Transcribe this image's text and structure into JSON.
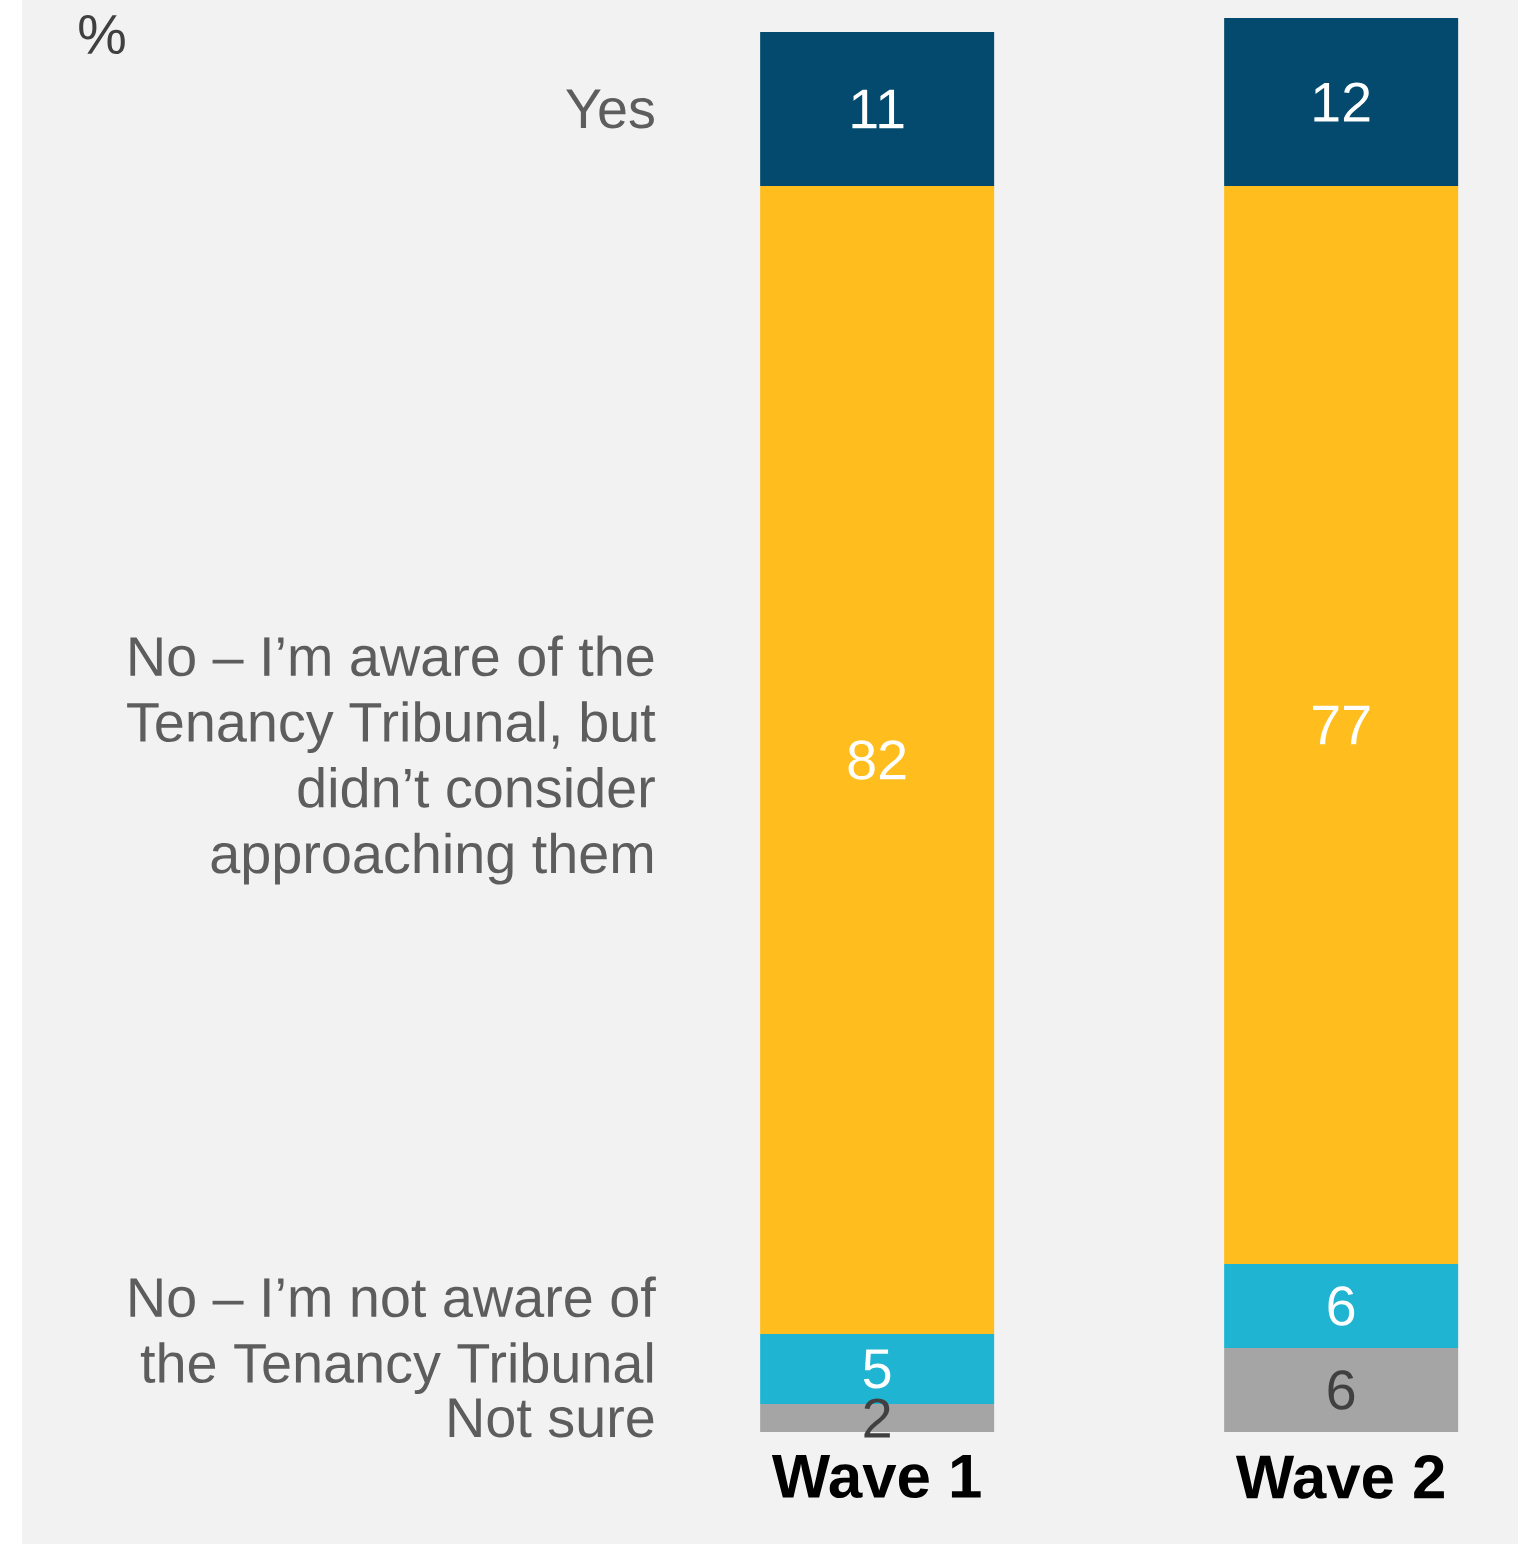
{
  "chart_data": {
    "type": "bar",
    "stacked": true,
    "annotations": [
      "%"
    ],
    "data_labels": true,
    "categories": [
      "Wave 1",
      "Wave 2"
    ],
    "series": [
      {
        "name": "Not sure",
        "color": "#a5a5a5",
        "values": [
          2,
          6
        ]
      },
      {
        "name": "No – I’m not aware of the Tenancy Tribunal",
        "color": "#1fb4d2",
        "values": [
          5,
          6
        ]
      },
      {
        "name": "No – I’m aware of the Tenancy Tribunal, but didn’t consider approaching them",
        "color": "#ffbe1e",
        "values": [
          82,
          77
        ]
      },
      {
        "name": "Yes",
        "color": "#034a6e",
        "values": [
          11,
          12
        ]
      }
    ]
  }
}
